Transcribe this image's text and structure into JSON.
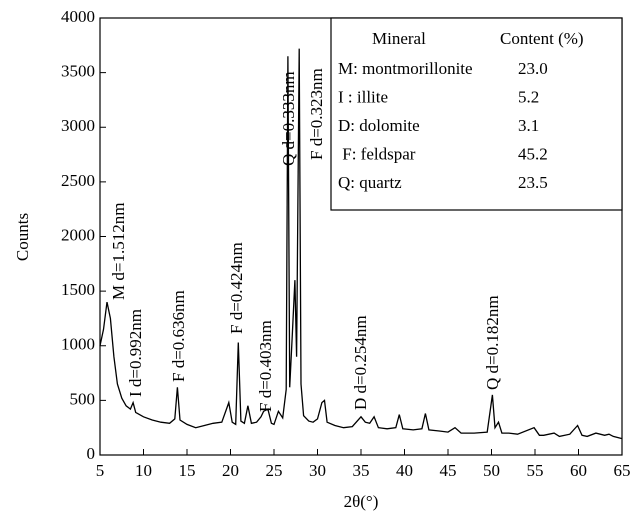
{
  "chart_data": {
    "type": "line",
    "x_label": "2θ(°)",
    "y_label": "Counts",
    "x": [
      5,
      5.4,
      5.8,
      6.2,
      6.6,
      7,
      7.5,
      8,
      8.5,
      8.8,
      9.1,
      10,
      11,
      12,
      13,
      13.6,
      13.9,
      14.2,
      15,
      16,
      17,
      18,
      19,
      19.8,
      20.2,
      20.6,
      20.9,
      21.2,
      21.6,
      22,
      22.4,
      23,
      23.5,
      23.8,
      24.3,
      24.7,
      25,
      25.5,
      26,
      26.4,
      26.6,
      26.8,
      27.1,
      27.4,
      27.6,
      27.9,
      28.1,
      28.4,
      29,
      29.5,
      30,
      30.5,
      30.8,
      31.1,
      32,
      33,
      34,
      35,
      35.5,
      36,
      36.5,
      37,
      38,
      39,
      39.4,
      39.8,
      41,
      42,
      42.4,
      42.8,
      44,
      45,
      45.8,
      46.5,
      48,
      49.5,
      50.1,
      50.4,
      50.8,
      51.2,
      52,
      53,
      54.9,
      55.5,
      56,
      57.2,
      57.8,
      59,
      59.9,
      60.4,
      61,
      62,
      63,
      63.5,
      64,
      65
    ],
    "y": [
      1000,
      1150,
      1400,
      1250,
      900,
      650,
      520,
      450,
      420,
      480,
      390,
      350,
      320,
      300,
      290,
      330,
      620,
      320,
      280,
      250,
      270,
      290,
      300,
      480,
      300,
      280,
      1030,
      310,
      290,
      450,
      290,
      300,
      350,
      400,
      420,
      290,
      280,
      400,
      340,
      600,
      3650,
      620,
      1100,
      1600,
      900,
      3720,
      650,
      360,
      310,
      300,
      330,
      480,
      500,
      300,
      270,
      250,
      260,
      350,
      300,
      290,
      350,
      250,
      240,
      250,
      370,
      240,
      230,
      240,
      380,
      230,
      220,
      210,
      250,
      200,
      200,
      210,
      550,
      250,
      300,
      200,
      200,
      190,
      250,
      180,
      180,
      200,
      170,
      190,
      270,
      180,
      170,
      200,
      180,
      190,
      170,
      150
    ],
    "color": "#000000",
    "xlim": [
      5,
      65
    ],
    "xticks": [
      5,
      10,
      15,
      20,
      25,
      30,
      35,
      40,
      45,
      50,
      55,
      60,
      65
    ],
    "ylim": [
      0,
      4000
    ],
    "yticks": [
      0,
      500,
      1000,
      1500,
      2000,
      2500,
      3000,
      3500,
      4000
    ],
    "annotations": [
      "M d=1.512nm",
      "I d=0.992nm",
      "F d=0.636nm",
      "F d=0.424nm",
      "F d=0.403nm",
      "Q d=0.333nm",
      "F d=0.323nm",
      "D d=0.254nm",
      "Q d=0.182nm"
    ],
    "table": {
      "headers": [
        "Mineral",
        "Content (%)"
      ],
      "rows": [
        [
          "M: montmorillonite",
          "23.0"
        ],
        [
          "I : illite",
          "5.2"
        ],
        [
          "D: dolomite",
          "3.1"
        ],
        [
          " F: feldspar",
          "45.2"
        ],
        [
          "Q: quartz",
          "23.5"
        ]
      ]
    }
  }
}
